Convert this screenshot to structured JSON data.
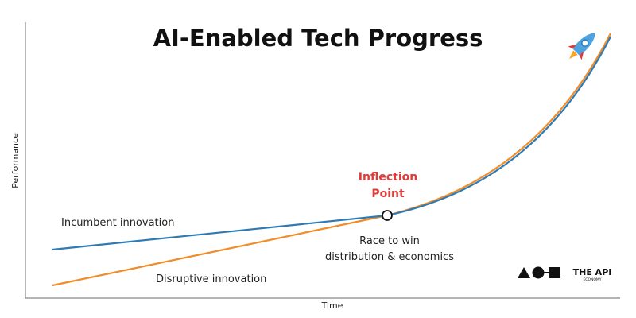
{
  "title": "AI-Enabled Tech Progress",
  "y_axis_label": "Performance",
  "x_axis_label": "Time",
  "labels": {
    "incumbent": "Incumbent innovation",
    "disruptive": "Disruptive innovation",
    "inflection": [
      "Inflection",
      "Point"
    ],
    "race": [
      "Race to win",
      "distribution & economics"
    ]
  },
  "logo": {
    "name": "THE API",
    "tagline": "ECONOMY"
  }
}
